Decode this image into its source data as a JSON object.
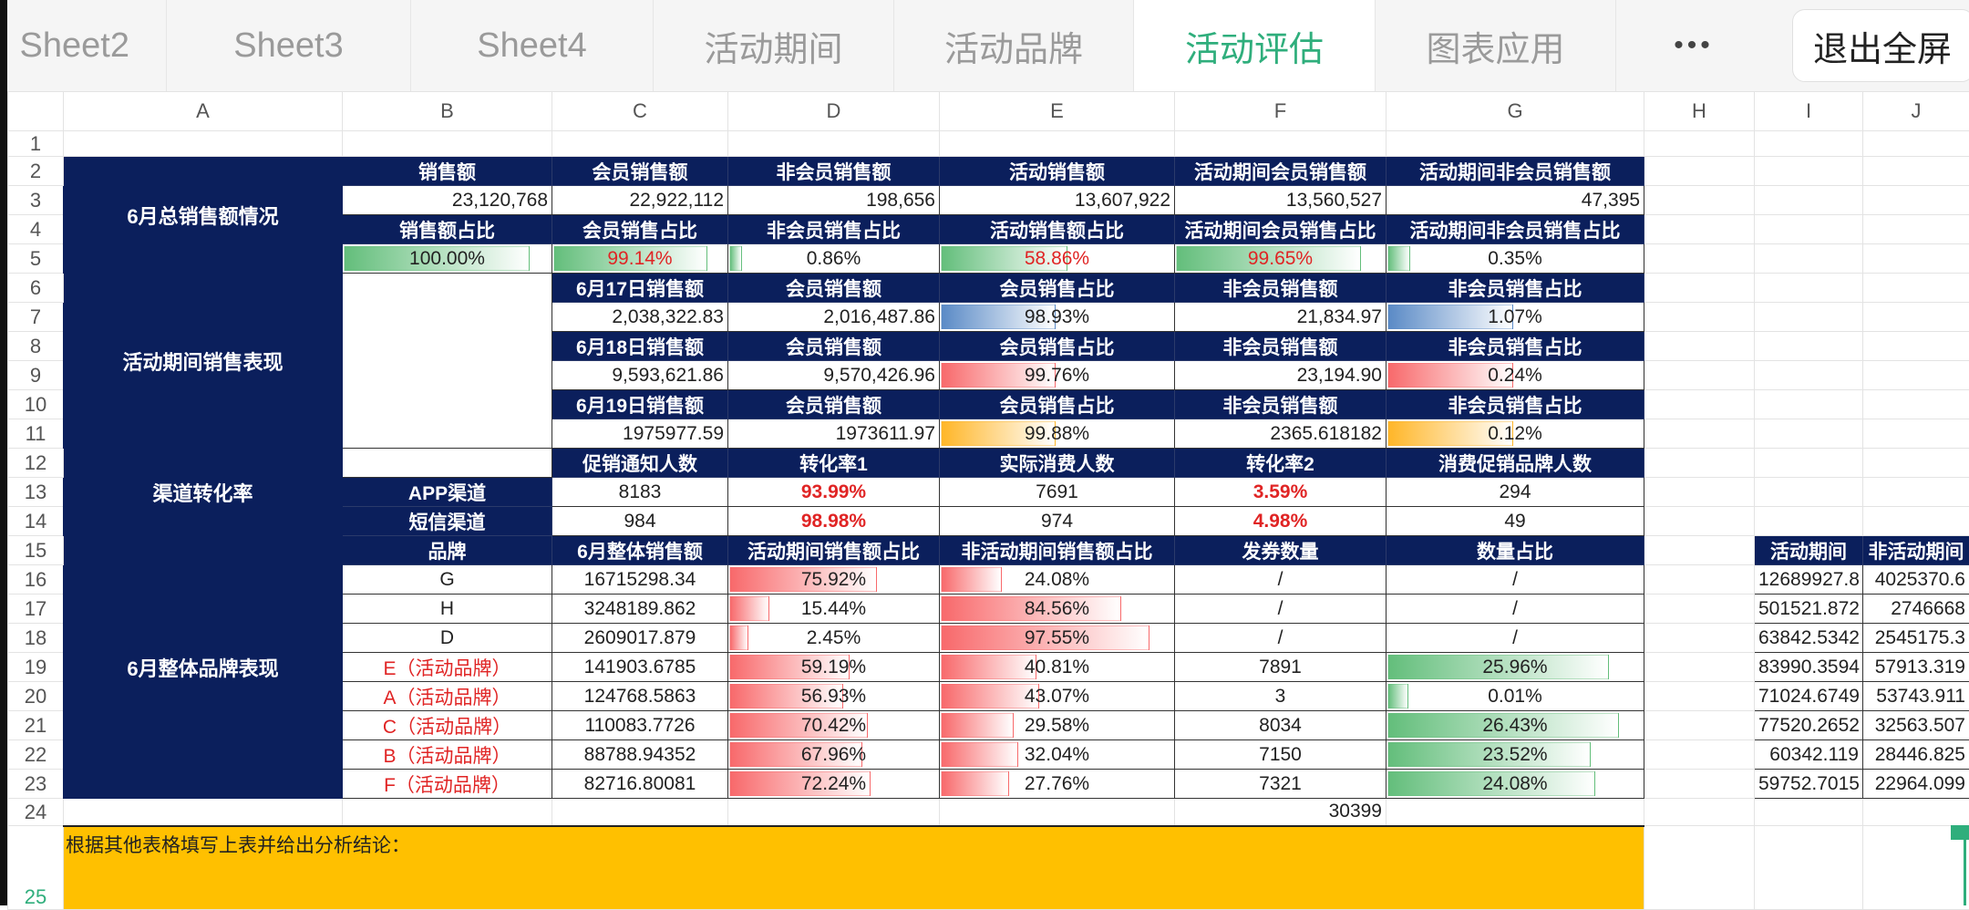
{
  "tabs": [
    "Sheet2",
    "Sheet3",
    "Sheet4",
    "活动期间",
    "活动品牌",
    "活动评估",
    "图表应用"
  ],
  "active_tab": "活动评估",
  "more_label": "•••",
  "exit_fullscreen": "退出全屏",
  "columns": [
    "A",
    "B",
    "C",
    "D",
    "E",
    "F",
    "G",
    "H",
    "I",
    "J"
  ],
  "row_numbers": [
    "1",
    "2",
    "3",
    "4",
    "5",
    "6",
    "7",
    "8",
    "9",
    "10",
    "11",
    "12",
    "13",
    "14",
    "15",
    "16",
    "17",
    "18",
    "19",
    "20",
    "21",
    "22",
    "23",
    "24",
    "25"
  ],
  "colors": {
    "header": "#0b1f5c",
    "green": "#63be7b",
    "red": "#f8696b",
    "blue": "#5a8ac6",
    "orange": "#ffb628",
    "note": "#ffc000",
    "accent": "#2fae7c"
  },
  "summary": {
    "title": "6月总销售额情况",
    "headers": [
      "销售额",
      "会员销售额",
      "非会员销售额",
      "活动销售额",
      "活动期间会员销售额",
      "活动期间非会员销售额"
    ],
    "values": [
      "23,120,768",
      "22,922,112",
      "198,656",
      "13,607,922",
      "13,560,527",
      "47,395"
    ],
    "ratio_headers": [
      "销售额占比",
      "会员销售占比",
      "非会员销售占比",
      "活动销售额占比",
      "活动期间会员销售占比",
      "活动期间非会员销售占比"
    ],
    "ratios": [
      {
        "text": "100.00%",
        "fill": 0.89,
        "highlight": false
      },
      {
        "text": "99.14%",
        "fill": 0.88,
        "highlight": true
      },
      {
        "text": "0.86%",
        "fill": 0.06,
        "highlight": false
      },
      {
        "text": "58.86%",
        "fill": 0.54,
        "highlight": true
      },
      {
        "text": "99.65%",
        "fill": 0.88,
        "highlight": true
      },
      {
        "text": "0.35%",
        "fill": 0.09,
        "highlight": false
      }
    ]
  },
  "activity": {
    "title": "活动期间销售表现",
    "days": [
      {
        "headers": [
          "6月17日销售额",
          "会员销售额",
          "会员销售占比",
          "非会员销售额",
          "非会员销售占比"
        ],
        "sales": "2,038,322.83",
        "member_sales": "2,016,487.86",
        "member_ratio": {
          "text": "98.93%",
          "fill": 0.49
        },
        "non_member_sales": "21,834.97",
        "non_member_ratio": {
          "text": "1.07%",
          "fill": 0.49
        },
        "bar_color": "blue"
      },
      {
        "headers": [
          "6月18日销售额",
          "会员销售额",
          "会员销售占比",
          "非会员销售额",
          "非会员销售占比"
        ],
        "sales": "9,593,621.86",
        "member_sales": "9,570,426.96",
        "member_ratio": {
          "text": "99.76%",
          "fill": 0.49
        },
        "non_member_sales": "23,194.90",
        "non_member_ratio": {
          "text": "0.24%",
          "fill": 0.49
        },
        "bar_color": "red"
      },
      {
        "headers": [
          "6月19日销售额",
          "会员销售额",
          "会员销售占比",
          "非会员销售额",
          "非会员销售占比"
        ],
        "sales": "1975977.59",
        "member_sales": "1973611.97",
        "member_ratio": {
          "text": "99.88%",
          "fill": 0.49
        },
        "non_member_sales": "2365.618182",
        "non_member_ratio": {
          "text": "0.12%",
          "fill": 0.49
        },
        "bar_color": "orange"
      }
    ]
  },
  "channel": {
    "title": "渠道转化率",
    "headers": [
      "促销通知人数",
      "转化率1",
      "实际消费人数",
      "转化率2",
      "消费促销品牌人数"
    ],
    "rows": [
      {
        "name": "APP渠道",
        "values": [
          "8183",
          "93.99%",
          "7691",
          "3.59%",
          "294"
        ]
      },
      {
        "name": "短信渠道",
        "values": [
          "984",
          "98.98%",
          "974",
          "4.98%",
          "49"
        ]
      }
    ]
  },
  "brands": {
    "title": "6月整体品牌表现",
    "headers": [
      "品牌",
      "6月整体销售额",
      "活动期间销售额占比",
      "非活动期间销售额占比",
      "发券数量",
      "数量占比"
    ],
    "rows": [
      {
        "brand": "G",
        "activity_brand": false,
        "total": "16715298.34",
        "act": {
          "text": "75.92%",
          "fill": 0.7
        },
        "non": {
          "text": "24.08%",
          "fill": 0.26
        },
        "coupons": "/",
        "share": {
          "text": "/",
          "fill": null
        }
      },
      {
        "brand": "H",
        "activity_brand": false,
        "total": "3248189.862",
        "act": {
          "text": "15.44%",
          "fill": 0.19
        },
        "non": {
          "text": "84.56%",
          "fill": 0.77
        },
        "coupons": "/",
        "share": {
          "text": "/",
          "fill": null
        }
      },
      {
        "brand": "D",
        "activity_brand": false,
        "total": "2609017.879",
        "act": {
          "text": "2.45%",
          "fill": 0.09
        },
        "non": {
          "text": "97.55%",
          "fill": 0.89
        },
        "coupons": "/",
        "share": {
          "text": "/",
          "fill": null
        }
      },
      {
        "brand": "E（活动品牌）",
        "activity_brand": true,
        "total": "141903.6785",
        "act": {
          "text": "59.19%",
          "fill": 0.57
        },
        "non": {
          "text": "40.81%",
          "fill": 0.41
        },
        "coupons": "7891",
        "share": {
          "text": "25.96%",
          "fill": 0.86
        }
      },
      {
        "brand": "A（活动品牌）",
        "activity_brand": true,
        "total": "124768.5863",
        "act": {
          "text": "56.93%",
          "fill": 0.54
        },
        "non": {
          "text": "43.07%",
          "fill": 0.42
        },
        "coupons": "3",
        "share": {
          "text": "0.01%",
          "fill": 0.08
        }
      },
      {
        "brand": "C（活动品牌）",
        "activity_brand": true,
        "total": "110083.7726",
        "act": {
          "text": "70.42%",
          "fill": 0.66
        },
        "non": {
          "text": "29.58%",
          "fill": 0.31
        },
        "coupons": "8034",
        "share": {
          "text": "26.43%",
          "fill": 0.9
        }
      },
      {
        "brand": "B（活动品牌）",
        "activity_brand": true,
        "total": "88788.94352",
        "act": {
          "text": "67.96%",
          "fill": 0.63
        },
        "non": {
          "text": "32.04%",
          "fill": 0.33
        },
        "coupons": "7150",
        "share": {
          "text": "23.52%",
          "fill": 0.79
        }
      },
      {
        "brand": "F（活动品牌）",
        "activity_brand": true,
        "total": "82716.80081",
        "act": {
          "text": "72.24%",
          "fill": 0.67
        },
        "non": {
          "text": "27.76%",
          "fill": 0.29
        },
        "coupons": "7321",
        "share": {
          "text": "24.08%",
          "fill": 0.81
        }
      }
    ],
    "coupon_total": "30399"
  },
  "side": {
    "headers": [
      "活动期间",
      "非活动期间"
    ],
    "rows": [
      [
        "12689927.8",
        "4025370.6"
      ],
      [
        "501521.872",
        "2746668"
      ],
      [
        "63842.5342",
        "2545175.3"
      ],
      [
        "83990.3594",
        "57913.319"
      ],
      [
        "71024.6749",
        "53743.911"
      ],
      [
        "77520.2652",
        "32563.507"
      ],
      [
        "60342.119",
        "28446.825"
      ],
      [
        "59752.7015",
        "22964.099"
      ]
    ]
  },
  "note": "根据其他表格填写上表并给出分析结论："
}
